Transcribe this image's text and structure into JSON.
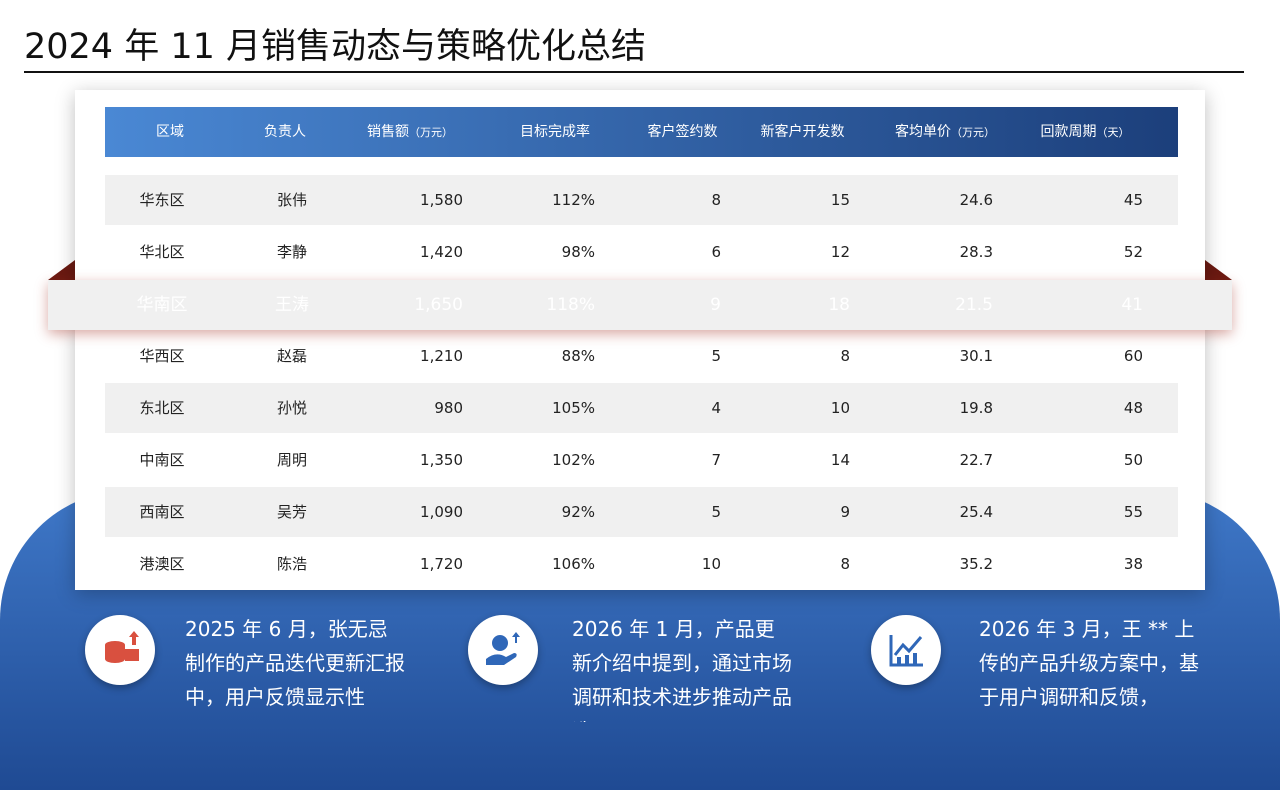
{
  "header": {
    "title": "2024 年 11 月销售动态与策略优化总结"
  },
  "table": {
    "columns": [
      {
        "label": "区域"
      },
      {
        "label": "负责人"
      },
      {
        "label": "销售额",
        "unit": "（万元）"
      },
      {
        "label": "目标完成率"
      },
      {
        "label": "客户签约数"
      },
      {
        "label": "新客户开发数"
      },
      {
        "label": "客均单价",
        "unit": "（万元）"
      },
      {
        "label": "回款周期",
        "unit": "（天）"
      }
    ],
    "rows": [
      [
        "华东区",
        "张伟",
        "1,580",
        "112%",
        "8",
        "15",
        "24.6",
        "45"
      ],
      [
        "华北区",
        "李静",
        "1,420",
        "98%",
        "6",
        "12",
        "28.3",
        "52"
      ],
      [
        "华南区",
        "王涛",
        "1,650",
        "118%",
        "9",
        "18",
        "21.5",
        "41"
      ],
      [
        "华西区",
        "赵磊",
        "1,210",
        "88%",
        "5",
        "8",
        "30.1",
        "60"
      ],
      [
        "东北区",
        "孙悦",
        "980",
        "105%",
        "4",
        "10",
        "19.8",
        "48"
      ],
      [
        "中南区",
        "周明",
        "1,350",
        "102%",
        "7",
        "14",
        "22.7",
        "50"
      ],
      [
        "西南区",
        "吴芳",
        "1,090",
        "92%",
        "5",
        "9",
        "25.4",
        "55"
      ],
      [
        "港澳区",
        "陈浩",
        "1,720",
        "106%",
        "10",
        "8",
        "35.2",
        "38"
      ]
    ],
    "highlight_row": 2
  },
  "cards": [
    {
      "text": "2025 年 6 月，张无忌制作的产品迭代更新汇报中，用户反馈显示性"
    },
    {
      "text": "2026 年 1 月，产品更新介绍中提到，通过市场调研和技术进步推动产品迭"
    },
    {
      "text": "2026 年 3 月，王 ** 上传的产品升级方案中，基于用户调研和反馈，"
    }
  ]
}
